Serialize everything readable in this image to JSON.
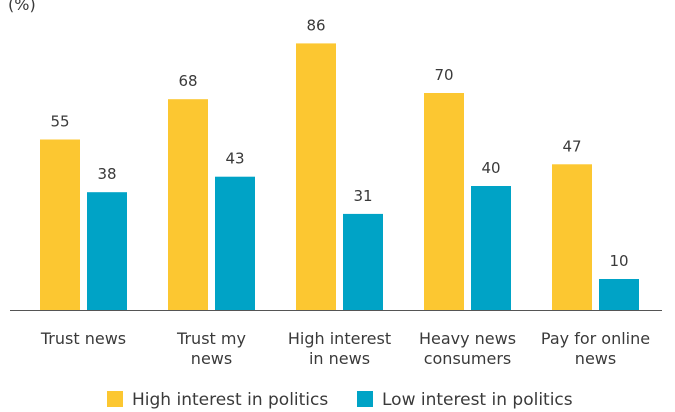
{
  "chart_data": {
    "type": "bar",
    "unit_label": "(%)",
    "categories": [
      [
        "Trust news"
      ],
      [
        "Trust my",
        "news"
      ],
      [
        "High interest",
        "in news"
      ],
      [
        "Heavy news",
        "consumers"
      ],
      [
        "Pay for online",
        "news"
      ]
    ],
    "series": [
      {
        "name": "High interest in politics",
        "color": "#fcc731",
        "values": [
          55,
          68,
          86,
          70,
          47
        ]
      },
      {
        "name": "Low interest in politics",
        "color": "#00a3c6",
        "values": [
          38,
          43,
          31,
          40,
          10
        ]
      }
    ],
    "ylim": [
      0,
      100
    ],
    "grid": false,
    "legend_position": "bottom"
  }
}
